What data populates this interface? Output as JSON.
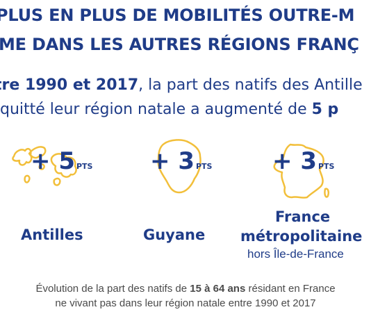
{
  "title": {
    "line1": "PLUS EN PLUS DE MOBILITÉS OUTRE-M",
    "line2": "ME DANS LES AUTRES RÉGIONS FRANÇ"
  },
  "intro": {
    "line1_bold": "tre 1990 et 2017",
    "line1_rest": ", la part des natifs des Antille",
    "line2_rest": "quitté leur région natale a augmenté de ",
    "line2_bold": "5 p"
  },
  "stats": [
    {
      "value": "+ 5",
      "unit": "PTS",
      "region": "Antilles",
      "map_icon": "antilles-map-icon"
    },
    {
      "value": "+ 3",
      "unit": "PTS",
      "region": "Guyane",
      "map_icon": "guyane-map-icon"
    },
    {
      "value": "+ 3",
      "unit": "PTS",
      "region_line1": "France",
      "region_line2": "métropolitaine",
      "region_sub": "hors Île-de-France",
      "map_icon": "france-map-icon"
    }
  ],
  "footnote": {
    "line1_pre": "Évolution de la part des natifs de ",
    "line1_bold": "15 à 64 ans",
    "line1_post": " résidant en France",
    "line2": "ne vivant pas dans leur région natale entre 1990 et 2017"
  },
  "colors": {
    "accent_navy": "#1f3c88",
    "map_outline": "#f2bf3a",
    "footnote_gray": "#4a4a4a"
  }
}
